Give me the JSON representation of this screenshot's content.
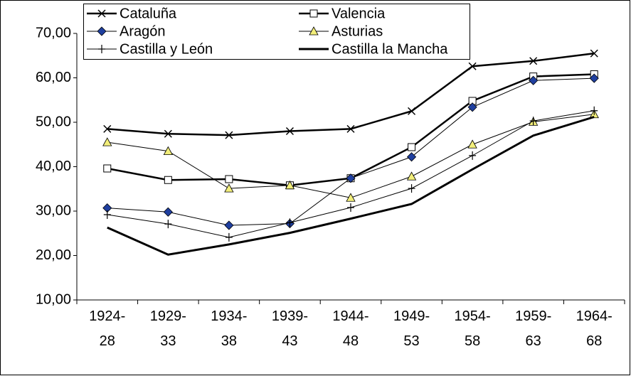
{
  "chart_data": {
    "type": "line",
    "categories": [
      "1924-28",
      "1929-33",
      "1934-38",
      "1939-43",
      "1944-48",
      "1949-53",
      "1954-58",
      "1959-63",
      "1964-68"
    ],
    "series": [
      {
        "name": "Cataluña",
        "color": "#000000",
        "marker": "x",
        "line_width": 2.5,
        "values": [
          48.5,
          47.4,
          47.1,
          48.0,
          48.5,
          52.5,
          62.6,
          63.8,
          65.5
        ]
      },
      {
        "name": "Valencia",
        "color": "#000000",
        "marker": "square",
        "line_width": 2.5,
        "values": [
          39.6,
          37.0,
          37.2,
          35.8,
          37.4,
          44.4,
          54.8,
          60.3,
          60.8
        ]
      },
      {
        "name": "Aragón",
        "color": "#000000",
        "marker": "diamond",
        "marker_color": "#1f3f9f",
        "line_width": 1,
        "values": [
          30.7,
          29.8,
          26.8,
          27.2,
          37.4,
          42.2,
          53.4,
          59.4,
          59.9
        ]
      },
      {
        "name": "Asturias",
        "color": "#000000",
        "marker": "triangle",
        "marker_color": "#f2ee7a",
        "line_width": 1,
        "values": [
          45.5,
          43.5,
          35.1,
          35.8,
          33.0,
          37.8,
          45.0,
          50.1,
          51.8
        ]
      },
      {
        "name": "Castilla y León",
        "color": "#000000",
        "marker": "plus",
        "line_width": 1,
        "values": [
          29.2,
          27.1,
          24.1,
          27.4,
          30.8,
          35.1,
          42.5,
          50.3,
          52.6
        ]
      },
      {
        "name": "Castilla la Mancha",
        "color": "#000000",
        "marker": "none",
        "line_width": 3,
        "values": [
          26.3,
          20.2,
          22.5,
          25.1,
          28.3,
          31.6,
          39.4,
          47.0,
          51.2
        ]
      }
    ],
    "ylim": [
      10,
      70
    ],
    "yticks": [
      {
        "value": 10,
        "label": "10,00"
      },
      {
        "value": 20,
        "label": "20,00"
      },
      {
        "value": 30,
        "label": "30,00"
      },
      {
        "value": 40,
        "label": "40,00"
      },
      {
        "value": 50,
        "label": "50,00"
      },
      {
        "value": 60,
        "label": "60,00"
      },
      {
        "value": 70,
        "label": "70,00"
      }
    ],
    "grid": false
  }
}
